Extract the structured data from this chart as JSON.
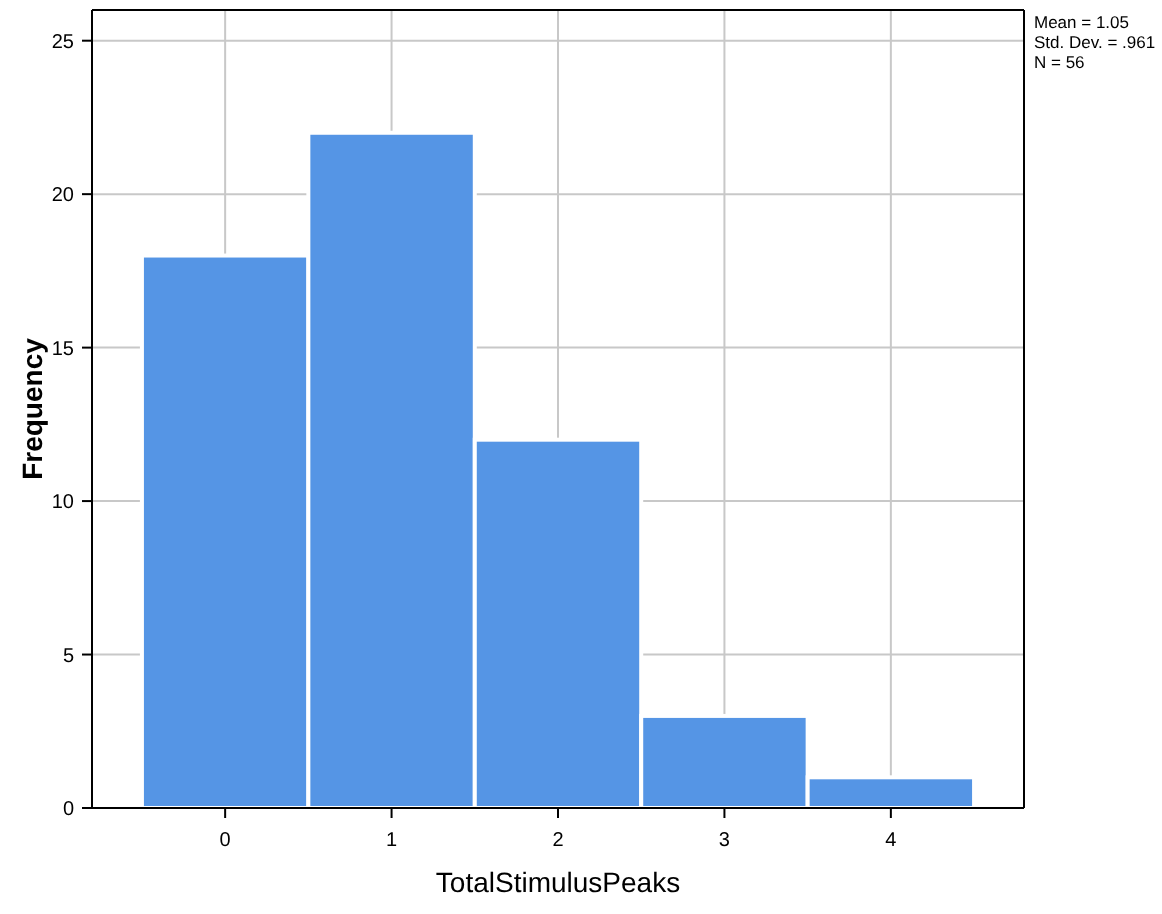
{
  "chart_data": {
    "type": "histogram",
    "xlabel": "TotalStimulusPeaks",
    "ylabel": "Frequency",
    "bins": [
      -0.5,
      0.5,
      1.5,
      2.5,
      3.5,
      4.5
    ],
    "values": [
      18,
      22,
      12,
      3,
      1
    ],
    "color": "#5595e5",
    "xlim": [
      -0.8,
      4.8
    ],
    "xticks": [
      0,
      1,
      2,
      3,
      4
    ],
    "ylim": [
      0,
      26
    ],
    "yticks": [
      0,
      5,
      10,
      15,
      20,
      25
    ],
    "grid": true,
    "annotations": [
      "Mean = 1.05",
      "Std. Dev. = .961",
      "N = 56"
    ]
  }
}
